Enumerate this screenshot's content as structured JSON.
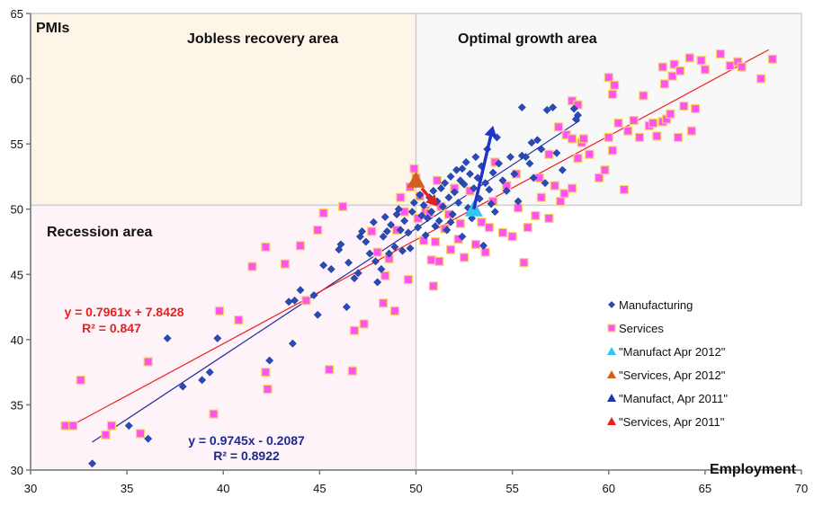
{
  "chart_data": {
    "type": "scatter",
    "title": "",
    "xlabel": "Employment",
    "ylabel": "PMIs",
    "xlim": [
      30,
      70
    ],
    "ylim": [
      30,
      65
    ],
    "x_ticks": [
      30,
      35,
      40,
      45,
      50,
      55,
      60,
      65,
      70
    ],
    "y_ticks": [
      30,
      35,
      40,
      45,
      50,
      55,
      60,
      65
    ],
    "grid": false,
    "legend_position": "bottom-right",
    "regions": [
      {
        "name": "Jobless recovery area",
        "x_range": [
          30,
          50
        ],
        "y_range": [
          50.3,
          65
        ],
        "color": "#fdf5e8"
      },
      {
        "name": "Optimal growth area",
        "x_range": [
          50,
          70
        ],
        "y_range": [
          50.3,
          65
        ],
        "color": "#f8f8f8"
      },
      {
        "name": "Recession area",
        "x_range": [
          30,
          50
        ],
        "y_range": [
          30,
          50.3
        ],
        "color": "#fdf3f8"
      }
    ],
    "series": [
      {
        "name": "Manufacturing",
        "marker": "diamond",
        "color": "#2a4bb5",
        "points": [
          [
            33.2,
            30.5
          ],
          [
            35.1,
            33.4
          ],
          [
            36.1,
            32.4
          ],
          [
            37.1,
            40.1
          ],
          [
            37.9,
            36.4
          ],
          [
            38.9,
            36.9
          ],
          [
            39.3,
            37.5
          ],
          [
            39.7,
            40.1
          ],
          [
            42.4,
            38.4
          ],
          [
            43.4,
            42.9
          ],
          [
            43.6,
            39.7
          ],
          [
            43.7,
            43.0
          ],
          [
            44.0,
            43.8
          ],
          [
            44.7,
            43.4
          ],
          [
            44.9,
            41.9
          ],
          [
            45.2,
            45.7
          ],
          [
            45.6,
            45.4
          ],
          [
            46.0,
            46.9
          ],
          [
            46.1,
            47.3
          ],
          [
            46.4,
            42.5
          ],
          [
            46.5,
            45.9
          ],
          [
            46.8,
            44.7
          ],
          [
            47.0,
            45.1
          ],
          [
            47.1,
            47.9
          ],
          [
            47.2,
            48.3
          ],
          [
            47.4,
            47.5
          ],
          [
            47.6,
            46.6
          ],
          [
            47.8,
            49.0
          ],
          [
            47.9,
            46.0
          ],
          [
            48.0,
            44.4
          ],
          [
            48.2,
            45.4
          ],
          [
            48.3,
            47.9
          ],
          [
            48.4,
            49.4
          ],
          [
            48.5,
            48.3
          ],
          [
            48.6,
            46.6
          ],
          [
            48.7,
            48.8
          ],
          [
            48.9,
            47.1
          ],
          [
            49.0,
            49.6
          ],
          [
            49.1,
            50.0
          ],
          [
            49.2,
            48.4
          ],
          [
            49.3,
            46.8
          ],
          [
            49.4,
            49.1
          ],
          [
            49.6,
            48.2
          ],
          [
            49.7,
            47.0
          ],
          [
            49.8,
            49.8
          ],
          [
            49.9,
            50.5
          ],
          [
            50.1,
            48.6
          ],
          [
            50.2,
            51.1
          ],
          [
            50.3,
            49.5
          ],
          [
            50.4,
            50.3
          ],
          [
            50.5,
            48.0
          ],
          [
            50.6,
            49.3
          ],
          [
            50.7,
            50.9
          ],
          [
            50.8,
            49.8
          ],
          [
            50.9,
            51.4
          ],
          [
            51.0,
            48.7
          ],
          [
            51.1,
            50.6
          ],
          [
            51.2,
            49.1
          ],
          [
            51.3,
            51.6
          ],
          [
            51.4,
            50.2
          ],
          [
            51.5,
            52.0
          ],
          [
            51.6,
            48.4
          ],
          [
            51.7,
            50.9
          ],
          [
            51.8,
            52.5
          ],
          [
            51.9,
            49.6
          ],
          [
            52.0,
            51.3
          ],
          [
            52.1,
            53.0
          ],
          [
            52.2,
            50.5
          ],
          [
            52.3,
            52.2
          ],
          [
            52.4,
            47.9
          ],
          [
            52.5,
            51.9
          ],
          [
            52.6,
            53.6
          ],
          [
            52.7,
            50.1
          ],
          [
            52.8,
            52.7
          ],
          [
            52.9,
            49.3
          ],
          [
            53.0,
            51.6
          ],
          [
            53.1,
            54.0
          ],
          [
            53.2,
            52.4
          ],
          [
            53.3,
            50.8
          ],
          [
            53.4,
            53.3
          ],
          [
            53.5,
            47.2
          ],
          [
            53.6,
            52.0
          ],
          [
            53.7,
            54.6
          ],
          [
            53.8,
            51.5
          ],
          [
            53.9,
            50.4
          ],
          [
            54.0,
            52.8
          ],
          [
            54.1,
            49.8
          ],
          [
            54.3,
            53.5
          ],
          [
            54.5,
            52.2
          ],
          [
            54.7,
            51.4
          ],
          [
            54.9,
            54.0
          ],
          [
            55.1,
            52.7
          ],
          [
            55.3,
            50.6
          ],
          [
            55.5,
            54.1
          ],
          [
            55.7,
            54.0
          ],
          [
            55.9,
            53.5
          ],
          [
            56.1,
            52.4
          ],
          [
            56.3,
            55.3
          ],
          [
            56.5,
            54.6
          ],
          [
            56.7,
            52.0
          ],
          [
            55.5,
            57.8
          ],
          [
            56.8,
            57.6
          ],
          [
            57.1,
            57.8
          ],
          [
            57.3,
            54.3
          ],
          [
            57.6,
            53.0
          ],
          [
            58.2,
            57.7
          ],
          [
            58.4,
            57.2
          ],
          [
            58.3,
            56.9
          ],
          [
            56.0,
            55.1
          ],
          [
            54.2,
            55.5
          ],
          [
            52.4,
            53.1
          ],
          [
            51.8,
            49.0
          ]
        ]
      },
      {
        "name": "Services",
        "marker": "square",
        "color": "#ff55ee",
        "points": [
          [
            31.8,
            33.4
          ],
          [
            32.2,
            33.4
          ],
          [
            32.6,
            36.9
          ],
          [
            33.9,
            32.7
          ],
          [
            34.2,
            33.4
          ],
          [
            35.7,
            32.8
          ],
          [
            36.1,
            38.3
          ],
          [
            39.5,
            34.3
          ],
          [
            39.8,
            42.2
          ],
          [
            40.8,
            41.5
          ],
          [
            41.5,
            45.6
          ],
          [
            42.2,
            47.1
          ],
          [
            42.2,
            37.5
          ],
          [
            42.3,
            36.2
          ],
          [
            43.2,
            45.8
          ],
          [
            44.0,
            47.2
          ],
          [
            44.3,
            43.0
          ],
          [
            44.9,
            48.4
          ],
          [
            45.2,
            49.7
          ],
          [
            45.5,
            37.7
          ],
          [
            46.2,
            50.2
          ],
          [
            46.7,
            37.6
          ],
          [
            46.8,
            40.7
          ],
          [
            47.3,
            41.2
          ],
          [
            47.7,
            48.3
          ],
          [
            48.0,
            46.7
          ],
          [
            48.3,
            42.8
          ],
          [
            48.4,
            44.9
          ],
          [
            48.6,
            46.2
          ],
          [
            48.9,
            42.2
          ],
          [
            49.0,
            48.4
          ],
          [
            49.2,
            50.9
          ],
          [
            49.4,
            49.8
          ],
          [
            49.6,
            44.6
          ],
          [
            49.7,
            51.7
          ],
          [
            49.9,
            53.1
          ],
          [
            50.0,
            52.4
          ],
          [
            50.1,
            49.3
          ],
          [
            50.2,
            51.0
          ],
          [
            50.4,
            47.6
          ],
          [
            50.5,
            49.9
          ],
          [
            50.7,
            49.7
          ],
          [
            50.8,
            46.1
          ],
          [
            50.9,
            44.1
          ],
          [
            51.0,
            47.5
          ],
          [
            51.1,
            52.2
          ],
          [
            51.2,
            46.0
          ],
          [
            51.3,
            50.2
          ],
          [
            51.5,
            48.5
          ],
          [
            51.7,
            49.6
          ],
          [
            51.8,
            46.9
          ],
          [
            52.0,
            51.6
          ],
          [
            52.2,
            47.7
          ],
          [
            52.3,
            48.9
          ],
          [
            52.5,
            46.3
          ],
          [
            52.8,
            51.4
          ],
          [
            53.1,
            47.3
          ],
          [
            53.4,
            49.0
          ],
          [
            53.6,
            46.7
          ],
          [
            53.8,
            48.6
          ],
          [
            54.0,
            50.6
          ],
          [
            54.1,
            53.6
          ],
          [
            54.5,
            48.2
          ],
          [
            54.7,
            51.8
          ],
          [
            55.0,
            47.9
          ],
          [
            55.3,
            50.1
          ],
          [
            55.6,
            45.9
          ],
          [
            55.8,
            48.6
          ],
          [
            56.2,
            49.5
          ],
          [
            56.5,
            50.9
          ],
          [
            56.9,
            49.3
          ],
          [
            57.2,
            51.8
          ],
          [
            57.5,
            50.6
          ],
          [
            57.7,
            51.2
          ],
          [
            58.1,
            51.6
          ],
          [
            58.4,
            53.9
          ],
          [
            58.6,
            55.1
          ],
          [
            58.7,
            55.4
          ],
          [
            59.0,
            54.2
          ],
          [
            59.5,
            52.4
          ],
          [
            59.8,
            53.0
          ],
          [
            60.0,
            55.5
          ],
          [
            60.2,
            54.5
          ],
          [
            60.5,
            56.6
          ],
          [
            60.8,
            51.5
          ],
          [
            61.0,
            56.0
          ],
          [
            61.3,
            56.8
          ],
          [
            61.6,
            55.5
          ],
          [
            61.8,
            58.7
          ],
          [
            62.1,
            56.4
          ],
          [
            62.3,
            56.6
          ],
          [
            62.5,
            55.6
          ],
          [
            62.8,
            56.7
          ],
          [
            63.0,
            56.9
          ],
          [
            63.2,
            57.3
          ],
          [
            63.6,
            55.5
          ],
          [
            63.9,
            57.9
          ],
          [
            64.3,
            56.0
          ],
          [
            64.5,
            57.7
          ],
          [
            60.0,
            60.1
          ],
          [
            60.3,
            59.5
          ],
          [
            60.2,
            58.8
          ],
          [
            62.9,
            59.6
          ],
          [
            63.3,
            60.2
          ],
          [
            62.8,
            60.9
          ],
          [
            63.4,
            61.1
          ],
          [
            63.7,
            60.6
          ],
          [
            64.2,
            61.6
          ],
          [
            64.8,
            61.4
          ],
          [
            65.0,
            60.7
          ],
          [
            65.8,
            61.9
          ],
          [
            66.3,
            61.0
          ],
          [
            66.7,
            61.3
          ],
          [
            66.9,
            60.9
          ],
          [
            67.9,
            60.0
          ],
          [
            68.5,
            61.5
          ],
          [
            57.8,
            55.7
          ],
          [
            58.1,
            55.4
          ],
          [
            56.4,
            52.4
          ],
          [
            55.2,
            52.7
          ],
          [
            56.9,
            54.2
          ],
          [
            57.4,
            56.3
          ],
          [
            58.1,
            58.3
          ],
          [
            58.4,
            58.0
          ]
        ]
      }
    ],
    "highlight_markers": [
      {
        "name": "\"Manufact Apr 2012\"",
        "x": 53.0,
        "y": 50.0,
        "color": "#33c7f0"
      },
      {
        "name": "\"Services, Apr 2012\"",
        "x": 50.0,
        "y": 52.2,
        "color": "#d2601a"
      },
      {
        "name": "\"Manufact, Apr 2011\"",
        "x": 54.0,
        "y": 56.4,
        "color": "#2233aa"
      },
      {
        "name": "\"Services, Apr 2011\"",
        "x": 51.1,
        "y": 50.2,
        "color": "#e8211d"
      }
    ],
    "arrows": [
      {
        "from": [
          53.0,
          50.0
        ],
        "to": [
          54.0,
          56.4
        ],
        "color": "#2233cc"
      },
      {
        "from": [
          50.3,
          51.6
        ],
        "to": [
          51.1,
          50.2
        ],
        "color": "#e8211d"
      }
    ],
    "trendlines": [
      {
        "series": "Manufacturing",
        "slope": 0.9745,
        "intercept": -0.2087,
        "r2": 0.8922,
        "x_range": [
          33.2,
          58.5
        ],
        "color": "#222d99",
        "equation_label": "y = 0.9745x - 0.2087",
        "r2_label": "R² = 0.8922"
      },
      {
        "series": "Services",
        "slope": 0.7961,
        "intercept": 7.8428,
        "r2": 0.847,
        "x_range": [
          31.8,
          68.3
        ],
        "color": "#e8211d",
        "equation_label": "y = 0.7961x + 7.8428",
        "r2_label": "R² = 0.847"
      }
    ]
  },
  "labels": {
    "y_axis_title": "PMIs",
    "x_axis_title": "Employment",
    "jobless_recovery": "Jobless recovery area",
    "optimal_growth": "Optimal growth area",
    "recession": "Recession area"
  },
  "legend": [
    {
      "label": "Manufacturing",
      "marker": "diamond",
      "color": "#2a4bb5"
    },
    {
      "label": "Services",
      "marker": "square",
      "color": "#ff55ee"
    },
    {
      "label": "\"Manufact Apr 2012\"",
      "marker": "triangle",
      "color": "#33c7f0"
    },
    {
      "label": "\"Services, Apr 2012\"",
      "marker": "triangle",
      "color": "#d2601a"
    },
    {
      "label": "\"Manufact, Apr 2011\"",
      "marker": "triangle",
      "color": "#2233aa"
    },
    {
      "label": "\"Services, Apr 2011\"",
      "marker": "triangle",
      "color": "#e8211d"
    }
  ]
}
